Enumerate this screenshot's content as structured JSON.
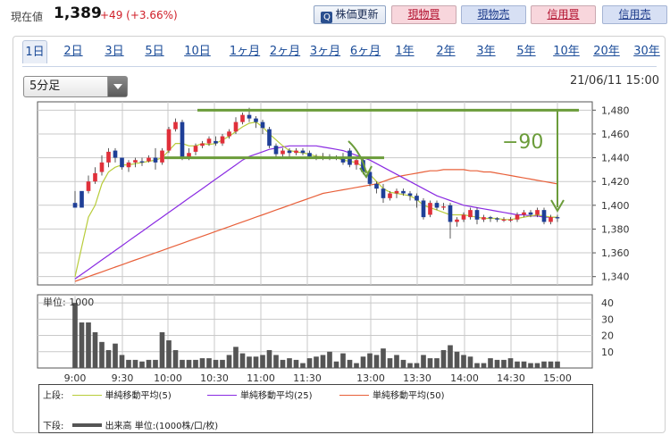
{
  "header": {
    "price_label": "現在値",
    "price_value": "1,389",
    "price_change": "+49 (+3.66%)",
    "refresh_label": "株価更新",
    "buttons": {
      "genbutsu_buy": "現物買",
      "genbutsu_sell": "現物売",
      "shinyo_buy": "信用買",
      "shinyo_sell": "信用売"
    }
  },
  "tabs": [
    "1日",
    "2日",
    "3日",
    "5日",
    "10日",
    "1ヶ月",
    "2ヶ月",
    "3ヶ月",
    "6ヶ月",
    "1年",
    "2年",
    "3年",
    "5年",
    "10年",
    "20年",
    "30年"
  ],
  "active_tab": "1日",
  "interval_select": {
    "value": "5分足"
  },
  "datetime": "21/06/11 15:00",
  "legend": {
    "upper_label": "上段:",
    "lower_label": "下段:",
    "sma5": "単純移動平均(5)",
    "sma25": "単純移動平均(25)",
    "sma50": "単純移動平均(50)",
    "volume": "出来高 単位:(1000株/口/枚)"
  },
  "colors": {
    "up": "#e0303a",
    "down": "#1f3f97",
    "sma5": "#b8cc3a",
    "sma25": "#8a2be2",
    "sma50": "#e8603a",
    "annotation": "#6b9c3a",
    "volume": "#555555"
  },
  "annotation_text": "−90",
  "chart_data": {
    "type": "candlestick",
    "interval": "5分足",
    "x_tick_labels": [
      "9:00",
      "9:30",
      "10:00",
      "10:30",
      "11:00",
      "11:30",
      "13:00",
      "13:30",
      "14:00",
      "14:30",
      "15:00"
    ],
    "price_axis": {
      "ticks": [
        1340,
        1360,
        1380,
        1400,
        1420,
        1440,
        1460,
        1480
      ],
      "range": [
        1333,
        1487
      ]
    },
    "volume_axis": {
      "unit_label": "単位: 1000",
      "ticks": [
        10,
        20,
        30,
        40
      ],
      "range": [
        0,
        45
      ]
    },
    "horizontal_lines": [
      1480,
      1440
    ],
    "candles": [
      [
        1402,
        1398,
        1412,
        1402
      ],
      [
        1412,
        1398,
        1412,
        1412
      ],
      [
        1412,
        1420,
        1425,
        1410
      ],
      [
        1420,
        1427,
        1432,
        1418
      ],
      [
        1428,
        1436,
        1442,
        1425
      ],
      [
        1436,
        1445,
        1448,
        1432
      ],
      [
        1446,
        1440,
        1448,
        1436
      ],
      [
        1440,
        1432,
        1440,
        1430
      ],
      [
        1432,
        1436,
        1438,
        1428
      ],
      [
        1436,
        1438,
        1440,
        1432
      ],
      [
        1437,
        1436,
        1440,
        1433
      ],
      [
        1437,
        1440,
        1442,
        1436
      ],
      [
        1440,
        1436,
        1448,
        1430
      ],
      [
        1436,
        1446,
        1448,
        1434
      ],
      [
        1446,
        1464,
        1466,
        1444
      ],
      [
        1464,
        1470,
        1473,
        1462
      ],
      [
        1470,
        1440,
        1472,
        1438
      ],
      [
        1440,
        1444,
        1448,
        1438
      ],
      [
        1445,
        1450,
        1452,
        1442
      ],
      [
        1450,
        1452,
        1454,
        1448
      ],
      [
        1452,
        1456,
        1458,
        1450
      ],
      [
        1454,
        1452,
        1458,
        1450
      ],
      [
        1452,
        1458,
        1460,
        1450
      ],
      [
        1458,
        1462,
        1464,
        1456
      ],
      [
        1462,
        1470,
        1474,
        1460
      ],
      [
        1470,
        1476,
        1478,
        1468
      ],
      [
        1476,
        1473,
        1482,
        1470
      ],
      [
        1473,
        1470,
        1475,
        1465
      ],
      [
        1470,
        1465,
        1472,
        1460
      ],
      [
        1464,
        1450,
        1466,
        1448
      ],
      [
        1450,
        1443,
        1452,
        1440
      ],
      [
        1443,
        1446,
        1448,
        1441
      ],
      [
        1446,
        1444,
        1448,
        1440
      ],
      [
        1444,
        1446,
        1448,
        1442
      ],
      [
        1446,
        1444,
        1448,
        1442
      ],
      [
        1444,
        1441,
        1446,
        1440
      ],
      [
        1441,
        1440,
        1443,
        1438
      ],
      [
        1440,
        1441,
        1444,
        1438
      ],
      [
        1441,
        1440,
        1443,
        1438
      ],
      [
        1440,
        1440,
        1442,
        1438
      ],
      [
        1440,
        1436,
        1444,
        1434
      ],
      [
        1446,
        1434,
        1448,
        1432
      ],
      [
        1434,
        1438,
        1440,
        1430
      ],
      [
        1438,
        1428,
        1440,
        1426
      ],
      [
        1428,
        1418,
        1430,
        1416
      ],
      [
        1418,
        1414,
        1420,
        1410
      ],
      [
        1414,
        1406,
        1418,
        1402
      ],
      [
        1406,
        1410,
        1412,
        1404
      ],
      [
        1410,
        1412,
        1414,
        1406
      ],
      [
        1412,
        1410,
        1414,
        1408
      ],
      [
        1410,
        1408,
        1412,
        1404
      ],
      [
        1408,
        1404,
        1410,
        1398
      ],
      [
        1404,
        1390,
        1406,
        1388
      ],
      [
        1392,
        1402,
        1404,
        1390
      ],
      [
        1402,
        1398,
        1404,
        1396
      ],
      [
        1398,
        1399,
        1402,
        1396
      ],
      [
        1400,
        1386,
        1402,
        1372
      ],
      [
        1386,
        1388,
        1390,
        1382
      ],
      [
        1388,
        1392,
        1394,
        1386
      ],
      [
        1390,
        1396,
        1398,
        1388
      ],
      [
        1396,
        1388,
        1398,
        1384
      ],
      [
        1388,
        1390,
        1392,
        1386
      ],
      [
        1390,
        1389,
        1391,
        1386
      ],
      [
        1389,
        1388,
        1390,
        1386
      ],
      [
        1388,
        1388,
        1390,
        1386
      ],
      [
        1388,
        1388,
        1390,
        1386
      ],
      [
        1388,
        1392,
        1394,
        1386
      ],
      [
        1392,
        1394,
        1396,
        1390
      ],
      [
        1394,
        1392,
        1396,
        1390
      ],
      [
        1392,
        1396,
        1398,
        1390
      ],
      [
        1396,
        1386,
        1398,
        1384
      ],
      [
        1386,
        1390,
        1392,
        1384
      ],
      [
        1390,
        1389,
        1392,
        1386
      ]
    ],
    "volume": [
      40,
      28,
      28,
      22,
      16,
      11,
      15,
      8,
      5,
      5,
      4,
      5,
      5,
      22,
      17,
      11,
      5,
      5,
      5,
      6,
      6,
      5,
      5,
      8,
      13,
      9,
      7,
      7,
      8,
      11,
      8,
      5,
      6,
      5,
      3,
      6,
      7,
      8,
      10,
      4,
      9,
      5,
      3,
      7,
      9,
      8,
      12,
      6,
      8,
      5,
      3,
      3,
      8,
      6,
      6,
      11,
      14,
      10,
      8,
      7,
      3,
      3,
      6,
      5,
      5,
      6,
      4,
      4,
      3,
      3,
      4,
      4,
      4
    ],
    "sma5": [
      1340,
      1365,
      1390,
      1400,
      1418,
      1428,
      1432,
      1434,
      1434,
      1435,
      1436,
      1437,
      1438,
      1440,
      1446,
      1452,
      1452,
      1450,
      1450,
      1452,
      1451,
      1452,
      1455,
      1458,
      1462,
      1466,
      1469,
      1470,
      1466,
      1460,
      1455,
      1450,
      1446,
      1445,
      1444,
      1443,
      1441,
      1441,
      1440,
      1440,
      1438,
      1437,
      1436,
      1432,
      1426,
      1420,
      1414,
      1411,
      1410,
      1409,
      1408,
      1405,
      1400,
      1398,
      1396,
      1394,
      1392,
      1392,
      1392,
      1391,
      1390,
      1389,
      1389,
      1389,
      1388,
      1388,
      1389,
      1390,
      1391,
      1392,
      1391,
      1390,
      1390
    ],
    "sma25": [
      1338,
      1342,
      1346,
      1350,
      1354,
      1358,
      1362,
      1366,
      1370,
      1374,
      1378,
      1382,
      1386,
      1390,
      1394,
      1398,
      1402,
      1406,
      1410,
      1414,
      1418,
      1422,
      1426,
      1430,
      1434,
      1438,
      1441,
      1443,
      1445,
      1447,
      1448,
      1449,
      1450,
      1450,
      1450,
      1450,
      1450,
      1449,
      1448,
      1447,
      1446,
      1444,
      1442,
      1440,
      1438,
      1435,
      1432,
      1429,
      1426,
      1423,
      1420,
      1417,
      1414,
      1411,
      1408,
      1406,
      1404,
      1402,
      1400,
      1399,
      1398,
      1397,
      1396,
      1395,
      1394,
      1393,
      1392,
      1392,
      1391,
      1391,
      1390,
      1390,
      1390
    ],
    "sma50": [
      1336,
      1338,
      1340,
      1342,
      1344,
      1346,
      1348,
      1350,
      1352,
      1354,
      1356,
      1358,
      1360,
      1362,
      1364,
      1366,
      1368,
      1370,
      1372,
      1374,
      1376,
      1378,
      1380,
      1382,
      1384,
      1386,
      1388,
      1390,
      1392,
      1394,
      1396,
      1398,
      1400,
      1402,
      1404,
      1406,
      1408,
      1410,
      1411,
      1412,
      1413,
      1414,
      1415,
      1416,
      1417,
      1418,
      1420,
      1422,
      1424,
      1425,
      1426,
      1427,
      1428,
      1429,
      1429,
      1430,
      1430,
      1430,
      1430,
      1429,
      1429,
      1428,
      1428,
      1427,
      1426,
      1425,
      1424,
      1423,
      1422,
      1421,
      1420,
      1419,
      1418
    ]
  }
}
